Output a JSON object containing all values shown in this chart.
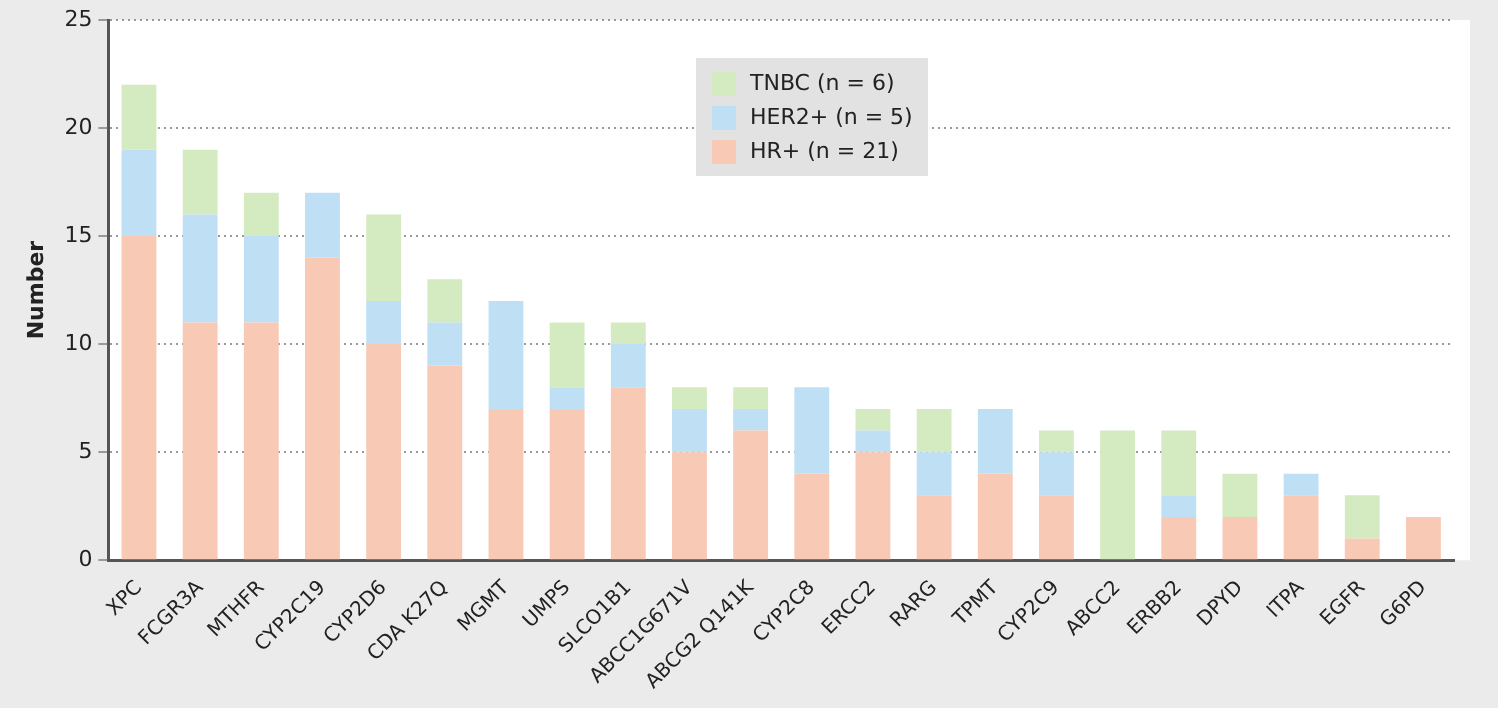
{
  "chart_data": {
    "type": "bar",
    "ylabel": "Number",
    "stacked": true,
    "legend": "top",
    "grid": "y",
    "categories": [
      "XPC",
      "FCGR3A",
      "MTHFR",
      "CYP2C19",
      "CYP2D6",
      "CDA K27Q",
      "MGMT",
      "UMPS",
      "SLCO1B1",
      "ABCC1G671V",
      "ABCG2 Q141K",
      "CYP2C8",
      "ERCC2",
      "RARG",
      "TPMT",
      "CYP2C9",
      "ABCC2",
      "ERBB2",
      "DPYD",
      "ITPA",
      "EGFR",
      "G6PD"
    ],
    "ylim": [
      0,
      25
    ],
    "yticks": [
      0,
      5,
      10,
      15,
      20,
      25
    ],
    "series": [
      {
        "name": "HR+ (n = 21)",
        "color": "#f8c9b4",
        "values": [
          15,
          11,
          11,
          14,
          10,
          9,
          7,
          7,
          8,
          5,
          6,
          4,
          5,
          3,
          4,
          3,
          0,
          2,
          2,
          3,
          1,
          2
        ]
      },
      {
        "name": "HER2+ (n = 5)",
        "color": "#bfe0f4",
        "values": [
          4,
          5,
          4,
          3,
          2,
          2,
          5,
          1,
          2,
          2,
          1,
          4,
          1,
          2,
          3,
          2,
          0,
          1,
          0,
          1,
          0,
          0
        ]
      },
      {
        "name": "TNBC (n = 6)",
        "color": "#d4ebc2",
        "values": [
          3,
          3,
          2,
          0,
          4,
          2,
          0,
          3,
          1,
          1,
          1,
          0,
          1,
          2,
          0,
          1,
          6,
          3,
          2,
          0,
          2,
          0
        ]
      }
    ]
  }
}
